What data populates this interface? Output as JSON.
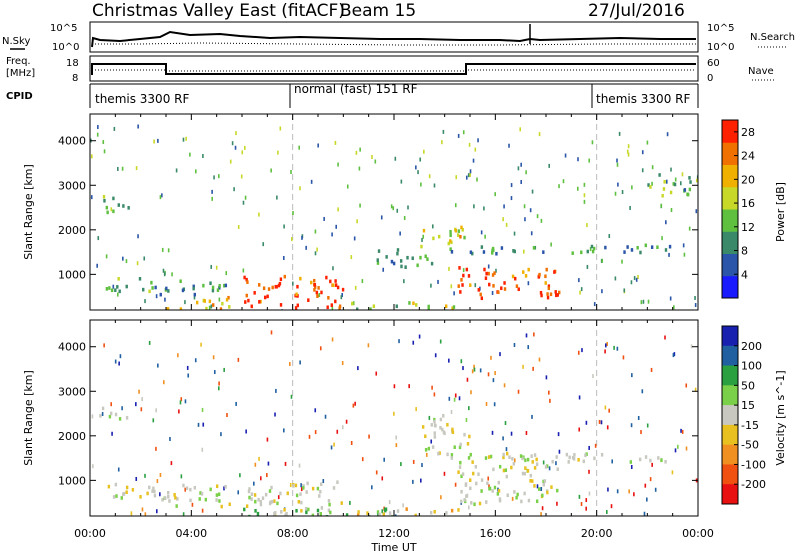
{
  "header": {
    "station": "Christmas Valley East (fitACF)",
    "beam": "Beam 15",
    "date": "27/Jul/2016"
  },
  "panel_labels": {
    "nsky": "N.Sky",
    "nsearch": "N.Search",
    "freq_line1": "Freq.",
    "freq_line2": "[MHz]",
    "nave": "Nave",
    "cpid": "CPID"
  },
  "modes": [
    "themis 3300 RF",
    "normal (fast) 151 RF",
    "themis 3300 RF"
  ],
  "x_axis": {
    "title": "Time UT",
    "ticks": [
      "00:00",
      "04:00",
      "08:00",
      "12:00",
      "16:00",
      "20:00",
      "00:00"
    ]
  },
  "noise_axis": {
    "left": [
      "10^5",
      "10^0"
    ],
    "right": [
      "10^5",
      "10^0"
    ]
  },
  "freq_axis": {
    "left": [
      "18",
      "8"
    ],
    "right": [
      "60",
      "0"
    ]
  },
  "colors": {
    "power": [
      "#1a1aff",
      "#2a55a8",
      "#3a8a6a",
      "#5fc040",
      "#c8d828",
      "#f0b000",
      "#f07000",
      "#ff2000"
    ],
    "velocity": [
      "#1820b0",
      "#2060a0",
      "#2aa040",
      "#7ad048",
      "#c8c8c0",
      "#e8c020",
      "#f09020",
      "#f05010",
      "#e81010"
    ]
  },
  "chart_data": [
    {
      "type": "heatmap",
      "title": "",
      "xlabel": "",
      "ylabel": "Slant Range [km]",
      "y_ticks": [
        1000,
        2000,
        3000,
        4000
      ],
      "ylim": [
        200,
        4600
      ],
      "xlim": [
        "00:00",
        "24:00"
      ],
      "colorbar": {
        "label": "Power [dB]",
        "ticks": [
          4,
          8,
          12,
          16,
          20,
          24,
          28
        ],
        "range": [
          0,
          30
        ]
      },
      "grid": "vertical dashed lines at 08:00 and 20:00",
      "regions": [
        {
          "t0": 0.6,
          "t1": 3.2,
          "r0": 650,
          "r1": 950,
          "level": 12
        },
        {
          "t0": 2.5,
          "t1": 5.5,
          "r0": 550,
          "r1": 900,
          "level": 10
        },
        {
          "t0": 3.0,
          "t1": 5.5,
          "r0": 250,
          "r1": 550,
          "level": 20
        },
        {
          "t0": 6.0,
          "t1": 10.0,
          "r0": 250,
          "r1": 1000,
          "level": 27
        },
        {
          "t0": 10.0,
          "t1": 15.0,
          "r0": 250,
          "r1": 400,
          "level": 14
        },
        {
          "t0": 11.0,
          "t1": 13.5,
          "r0": 1200,
          "r1": 1600,
          "level": 10
        },
        {
          "t0": 13.0,
          "t1": 15.0,
          "r0": 1600,
          "r1": 2100,
          "level": 18
        },
        {
          "t0": 14.5,
          "t1": 18.5,
          "r0": 500,
          "r1": 1200,
          "level": 26
        },
        {
          "t0": 14.0,
          "t1": 23.0,
          "r0": 1500,
          "r1": 1700,
          "level": 10
        },
        {
          "t0": 0.3,
          "t1": 1.5,
          "r0": 2400,
          "r1": 2800,
          "level": 14
        },
        {
          "t0": 22.0,
          "t1": 24.0,
          "r0": 2800,
          "r1": 3300,
          "level": 12
        }
      ]
    },
    {
      "type": "heatmap",
      "title": "",
      "xlabel": "Time UT",
      "ylabel": "Slant Range [km]",
      "y_ticks": [
        1000,
        2000,
        3000,
        4000
      ],
      "ylim": [
        200,
        4600
      ],
      "xlim": [
        "00:00",
        "24:00"
      ],
      "colorbar": {
        "label": "Velocity [m s^-1]",
        "ticks": [
          200,
          100,
          50,
          15,
          -15,
          -50,
          -100,
          -200
        ],
        "range": [
          -250,
          250
        ]
      },
      "grid": "vertical dashed lines at 08:00 and 20:00",
      "regions": [
        {
          "t0": 0.5,
          "t1": 5.5,
          "r0": 450,
          "r1": 950,
          "velocity": 0
        },
        {
          "t0": 6.0,
          "t1": 10.0,
          "r0": 250,
          "r1": 1000,
          "velocity": 0
        },
        {
          "t0": 6.0,
          "t1": 12.0,
          "r0": 200,
          "r1": 400,
          "velocity": 40
        },
        {
          "t0": 10.0,
          "t1": 15.0,
          "r0": 250,
          "r1": 400,
          "velocity": -20
        },
        {
          "t0": 13.0,
          "t1": 15.0,
          "r0": 1600,
          "r1": 2500,
          "velocity": 0
        },
        {
          "t0": 14.5,
          "t1": 18.5,
          "r0": 500,
          "r1": 1600,
          "velocity": 0
        },
        {
          "t0": 14.0,
          "t1": 23.0,
          "r0": 1450,
          "r1": 1650,
          "velocity": 0
        },
        {
          "t0": 0.2,
          "t1": 1.5,
          "r0": 2400,
          "r1": 2700,
          "velocity": 0
        }
      ]
    }
  ]
}
